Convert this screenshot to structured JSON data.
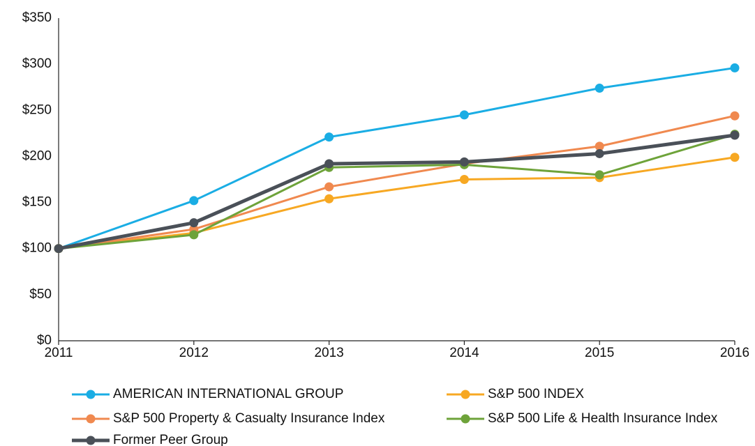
{
  "chart_data": {
    "type": "line",
    "x": [
      2011,
      2012,
      2013,
      2014,
      2015,
      2016
    ],
    "xlim": [
      2011,
      2016
    ],
    "xticks": [
      2011,
      2012,
      2013,
      2014,
      2015,
      2016
    ],
    "ylim": [
      0,
      350
    ],
    "yticks": [
      {
        "value": 0,
        "label": "$0"
      },
      {
        "value": 50,
        "label": "$50"
      },
      {
        "value": 100,
        "label": "$100"
      },
      {
        "value": 150,
        "label": "$150"
      },
      {
        "value": 200,
        "label": "$200"
      },
      {
        "value": 250,
        "label": "$250"
      },
      {
        "value": 300,
        "label": "$300"
      },
      {
        "value": 350,
        "label": "$350"
      }
    ],
    "grid": false,
    "legend": "bottom",
    "series": [
      {
        "name": "AMERICAN INTERNATIONAL GROUP",
        "color": "#1aade4",
        "values": [
          100,
          152,
          221,
          245,
          274,
          296
        ]
      },
      {
        "name": "S&P 500 INDEX",
        "color": "#f7a823",
        "values": [
          100,
          117,
          154,
          175,
          177,
          199
        ]
      },
      {
        "name": "S&P 500 Property & Casualty Insurance Index",
        "color": "#f0894f",
        "values": [
          100,
          121,
          167,
          192,
          211,
          244
        ]
      },
      {
        "name": "S&P 500 Life & Health Insurance Index",
        "color": "#6ea33a",
        "values": [
          100,
          115,
          188,
          191,
          180,
          224
        ]
      },
      {
        "name": "Former Peer Group",
        "color": "#4a5058",
        "values": [
          100,
          128,
          192,
          194,
          203,
          223
        ]
      }
    ]
  }
}
